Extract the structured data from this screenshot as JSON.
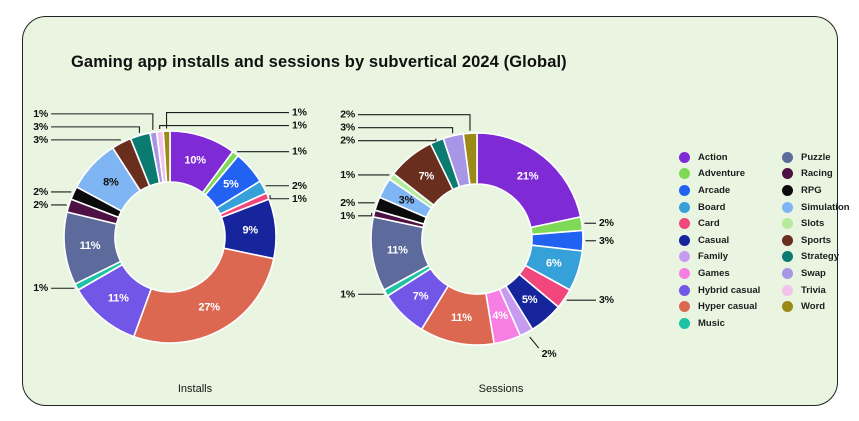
{
  "card": {
    "title": "Gaming app installs and sessions by subvertical 2024 (Global)",
    "background": "#e9f5e0",
    "border_color": "#222222"
  },
  "palette": {
    "Action": "#7e2bd6",
    "Adventure": "#7ed957",
    "Arcade": "#2262f3",
    "Board": "#36a0d8",
    "Card": "#f2477d",
    "Casual": "#16259c",
    "Family": "#c79cf0",
    "Games": "#f77fe4",
    "Hybrid casual": "#7156e8",
    "Hyper casual": "#dd6852",
    "Music": "#1dc3a4",
    "Puzzle": "#5d6b9c",
    "Racing": "#4e1143",
    "RPG": "#0b0b0b",
    "Simulation": "#7fb5f2",
    "Slots": "#b5eb9e",
    "Sports": "#6a2e1f",
    "Strategy": "#0b7a70",
    "Swap": "#a795e6",
    "Trivia": "#f2c4ec",
    "Word": "#9b8a15"
  },
  "legend": {
    "columns": [
      [
        "Action",
        "Adventure",
        "Arcade",
        "Board",
        "Card",
        "Casual",
        "Family",
        "Games",
        "Hybrid casual",
        "Hyper casual",
        "Music"
      ],
      [
        "Puzzle",
        "Racing",
        "RPG",
        "Simulation",
        "Slots",
        "Sports",
        "Strategy",
        "Swap",
        "Trivia",
        "Word"
      ]
    ]
  },
  "chart_data": [
    {
      "type": "pie",
      "variant": "donut",
      "caption": "Installs",
      "legend_position": "right",
      "slices": [
        {
          "category": "Action",
          "value": 10,
          "label": "10%",
          "placement": "in"
        },
        {
          "category": "Adventure",
          "value": 1,
          "label": "1%",
          "placement": "right"
        },
        {
          "category": "Arcade",
          "value": 5,
          "label": "5%",
          "placement": "in"
        },
        {
          "category": "Board",
          "value": 2,
          "label": "2%",
          "placement": "right"
        },
        {
          "category": "Card",
          "value": 1,
          "label": "1%",
          "placement": "right"
        },
        {
          "category": "Casual",
          "value": 9,
          "label": "9%",
          "placement": "in"
        },
        {
          "category": "Hyper casual",
          "value": 27,
          "label": "27%",
          "placement": "in"
        },
        {
          "category": "Hybrid casual",
          "value": 11,
          "label": "11%",
          "placement": "in"
        },
        {
          "category": "Music",
          "value": 1,
          "label": "1%",
          "placement": "left"
        },
        {
          "category": "Puzzle",
          "value": 11,
          "label": "11%",
          "placement": "in"
        },
        {
          "category": "Racing",
          "value": 2,
          "label": "2%",
          "placement": "left"
        },
        {
          "category": "RPG",
          "value": 2,
          "label": "2%",
          "placement": "left"
        },
        {
          "category": "Simulation",
          "value": 8,
          "label": "8%",
          "placement": "in"
        },
        {
          "category": "Sports",
          "value": 3,
          "label": "3%",
          "placement": "left"
        },
        {
          "category": "Strategy",
          "value": 3,
          "label": "3%",
          "placement": "left"
        },
        {
          "category": "Swap",
          "value": 1,
          "label": "1%",
          "placement": "left"
        },
        {
          "category": "Trivia",
          "value": 1,
          "label": "1%",
          "placement": "right"
        },
        {
          "category": "Word",
          "value": 1,
          "label": "1%",
          "placement": "right"
        }
      ]
    },
    {
      "type": "pie",
      "variant": "donut",
      "caption": "Sessions",
      "legend_position": "right",
      "slices": [
        {
          "category": "Action",
          "value": 21,
          "label": "21%",
          "placement": "in"
        },
        {
          "category": "Adventure",
          "value": 2,
          "label": "2%",
          "placement": "right"
        },
        {
          "category": "Arcade",
          "value": 3,
          "label": "3%",
          "placement": "right"
        },
        {
          "category": "Board",
          "value": 6,
          "label": "6%",
          "placement": "in"
        },
        {
          "category": "Card",
          "value": 3,
          "label": "3%",
          "placement": "right"
        },
        {
          "category": "Casual",
          "value": 5,
          "label": "5%",
          "placement": "in"
        },
        {
          "category": "Family",
          "value": 2,
          "label": "2%",
          "placement": "bottom"
        },
        {
          "category": "Games",
          "value": 4,
          "label": "4%",
          "placement": "in"
        },
        {
          "category": "Hyper casual",
          "value": 11,
          "label": "11%",
          "placement": "in"
        },
        {
          "category": "Hybrid casual",
          "value": 7,
          "label": "7%",
          "placement": "in"
        },
        {
          "category": "Music",
          "value": 1,
          "label": "1%",
          "placement": "left"
        },
        {
          "category": "Puzzle",
          "value": 11,
          "label": "11%",
          "placement": "in"
        },
        {
          "category": "Racing",
          "value": 1,
          "label": "1%",
          "placement": "left"
        },
        {
          "category": "RPG",
          "value": 2,
          "label": "2%",
          "placement": "left"
        },
        {
          "category": "Simulation",
          "value": 3,
          "label": "3%",
          "placement": "in"
        },
        {
          "category": "Slots",
          "value": 1,
          "label": "1%",
          "placement": "left"
        },
        {
          "category": "Sports",
          "value": 7,
          "label": "7%",
          "placement": "in"
        },
        {
          "category": "Strategy",
          "value": 2,
          "label": "2%",
          "placement": "left"
        },
        {
          "category": "Swap",
          "value": 3,
          "label": "3%",
          "placement": "left"
        },
        {
          "category": "Word",
          "value": 2,
          "label": "2%",
          "placement": "left"
        }
      ]
    }
  ]
}
